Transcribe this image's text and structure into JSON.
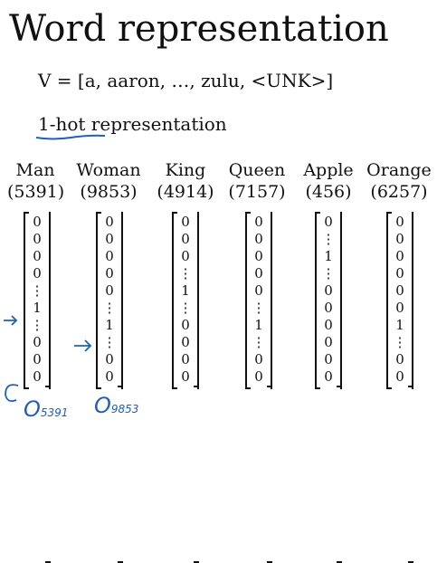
{
  "title": "Word representation",
  "vocabulary": "V = [a, aaron, …, zulu, <UNK>]",
  "representation_label": "1-hot representation",
  "words": [
    {
      "name": "Man",
      "index": "(5391)",
      "vector": [
        "0",
        "0",
        "0",
        "0",
        "⋮",
        "1",
        "⋮",
        "0",
        "0",
        "0"
      ]
    },
    {
      "name": "Woman",
      "index": "(9853)",
      "vector": [
        "0",
        "0",
        "0",
        "0",
        "0",
        "⋮",
        "1",
        "⋮",
        "0",
        "0"
      ]
    },
    {
      "name": "King",
      "index": "(4914)",
      "vector": [
        "0",
        "0",
        "0",
        "⋮",
        "1",
        "⋮",
        "0",
        "0",
        "0",
        "0"
      ]
    },
    {
      "name": "Queen",
      "index": "(7157)",
      "vector": [
        "0",
        "0",
        "0",
        "0",
        "0",
        "⋮",
        "1",
        "⋮",
        "0",
        "0"
      ]
    },
    {
      "name": "Apple",
      "index": "(456)",
      "vector": [
        "0",
        "⋮",
        "1",
        "⋮",
        "0",
        "0",
        "0",
        "0",
        "0",
        "0"
      ]
    },
    {
      "name": "Orange",
      "index": "(6257)",
      "vector": [
        "0",
        "0",
        "0",
        "0",
        "0",
        "0",
        "1",
        "⋮",
        "0",
        "0"
      ]
    }
  ],
  "handwritten": {
    "man_label": "O",
    "man_subscript": "5391",
    "woman_label": "O",
    "woman_subscript": "9853"
  },
  "annotation_color": "#1f5fbf"
}
